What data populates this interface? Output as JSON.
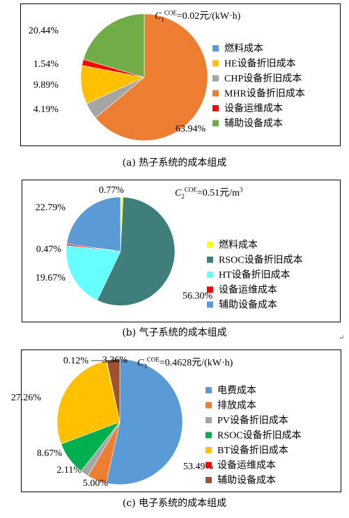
{
  "chart_data": [
    {
      "type": "pie",
      "caption": "(a) 热子系统的成本组成",
      "equation": {
        "var": "C",
        "sub": "1",
        "sup": "COE",
        "value": "=0.02元/(kW·h)"
      },
      "series": [
        {
          "name": "燃料成本",
          "value": 0.0,
          "label": "",
          "color": "#5B9BD5"
        },
        {
          "name": "HE设备折旧成本",
          "value": 9.89,
          "label": "9.89%",
          "color": "#FFC000"
        },
        {
          "name": "CHP设备折旧成本",
          "value": 4.19,
          "label": "4.19%",
          "color": "#A5A5A5"
        },
        {
          "name": "MHR设备折旧成本",
          "value": 63.94,
          "label": "63.94%",
          "color": "#ED7D31"
        },
        {
          "name": "设备运维成本",
          "value": 1.54,
          "label": "1.54%",
          "color": "#FF0000"
        },
        {
          "name": "辅助设备成本",
          "value": 20.44,
          "label": "20.44%",
          "color": "#70AD47"
        }
      ],
      "pie_order": [
        3,
        2,
        1,
        4,
        5
      ]
    },
    {
      "type": "pie",
      "caption": "(b) 气子系统的成本组成",
      "equation": {
        "var": "C",
        "sub": "2",
        "sup": "COE",
        "value": "=0.51元/m",
        "sup2": "3"
      },
      "series": [
        {
          "name": "燃料成本",
          "value": 0.77,
          "label": "0.77%",
          "color": "#FFFF00"
        },
        {
          "name": "RSOC设备折旧成本",
          "value": 56.3,
          "label": "56.30%",
          "color": "#3E7F7B"
        },
        {
          "name": "HT设备折旧成本",
          "value": 19.67,
          "label": "19.67%",
          "color": "#66FFFF"
        },
        {
          "name": "设备运维成本",
          "value": 0.47,
          "label": "0.47%",
          "color": "#FF0000"
        },
        {
          "name": "辅助设备成本",
          "value": 22.79,
          "label": "22.79%",
          "color": "#5B9BD5"
        }
      ],
      "pie_order": [
        0,
        1,
        2,
        3,
        4
      ]
    },
    {
      "type": "pie",
      "caption": "(c) 电子系统的成本组成",
      "equation": {
        "var": "C",
        "sub": "3",
        "sup": "COE",
        "value": "=0.4628元/(kW·h)"
      },
      "series": [
        {
          "name": "电费成本",
          "value": 53.49,
          "label": "53.49%",
          "color": "#5B9BD5"
        },
        {
          "name": "排放成本",
          "value": 5.0,
          "label": "5.00%",
          "color": "#ED7D31"
        },
        {
          "name": "PV设备折旧成本",
          "value": 2.11,
          "label": "2.11%",
          "color": "#A5A5A5"
        },
        {
          "name": "RSOC设备折旧成本",
          "value": 8.67,
          "label": "8.67%",
          "color": "#00B050"
        },
        {
          "name": "BT设备折旧成本",
          "value": 27.26,
          "label": "27.26%",
          "color": "#FFC000"
        },
        {
          "name": "设备运维成本",
          "value": 0.12,
          "label": "0.12%",
          "color": "#FF0000"
        },
        {
          "name": "辅助设备成本",
          "value": 3.36,
          "label": "3.36%",
          "color": "#A0522D"
        }
      ],
      "pie_order": [
        0,
        1,
        2,
        3,
        4,
        5,
        6
      ]
    }
  ],
  "return_mark": "↵"
}
